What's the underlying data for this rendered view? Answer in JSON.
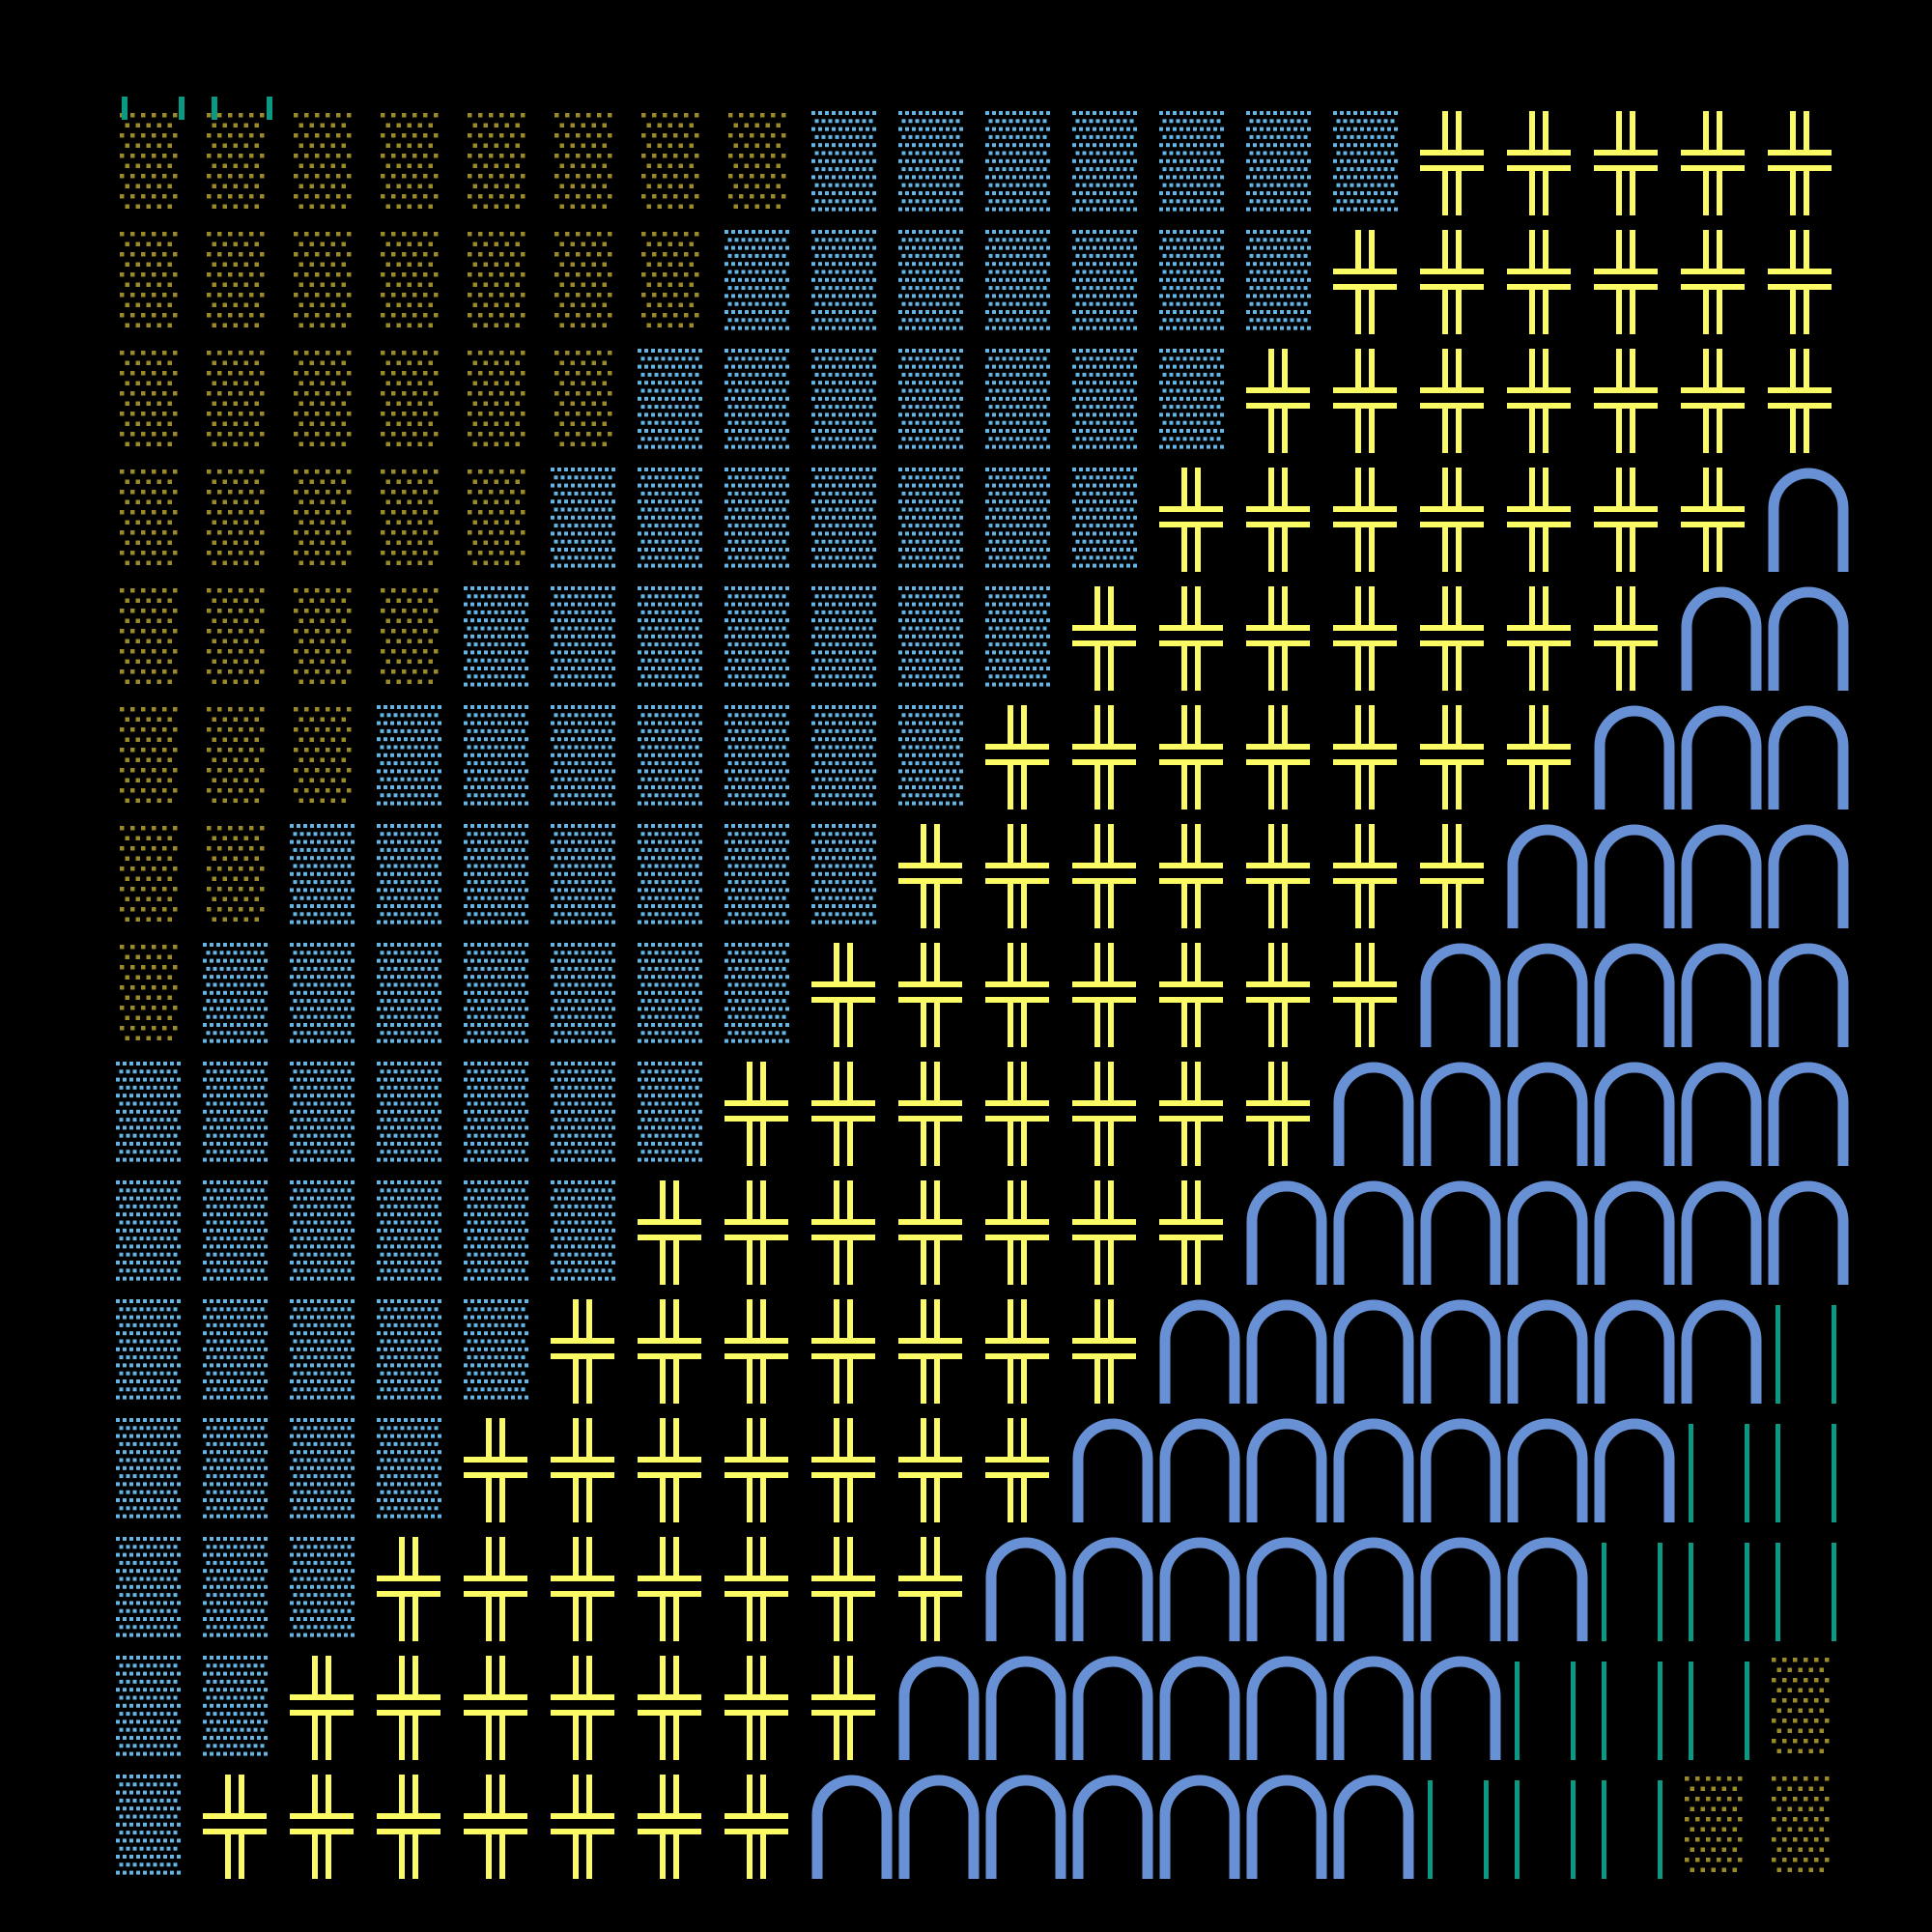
{
  "background": "#000000",
  "grid": {
    "rows": 15,
    "cols": 20
  },
  "tile_types": {
    "dots": {
      "color": "#9a8a28"
    },
    "grid": {
      "color": "#64b4e4"
    },
    "cross": {
      "color": "#fafa64"
    },
    "arch": {
      "color": "#6890d4"
    },
    "bars": {
      "color": "#0a9a84"
    }
  },
  "band_order": [
    "dots",
    "grid",
    "cross",
    "arch",
    "bars",
    "dots"
  ]
}
